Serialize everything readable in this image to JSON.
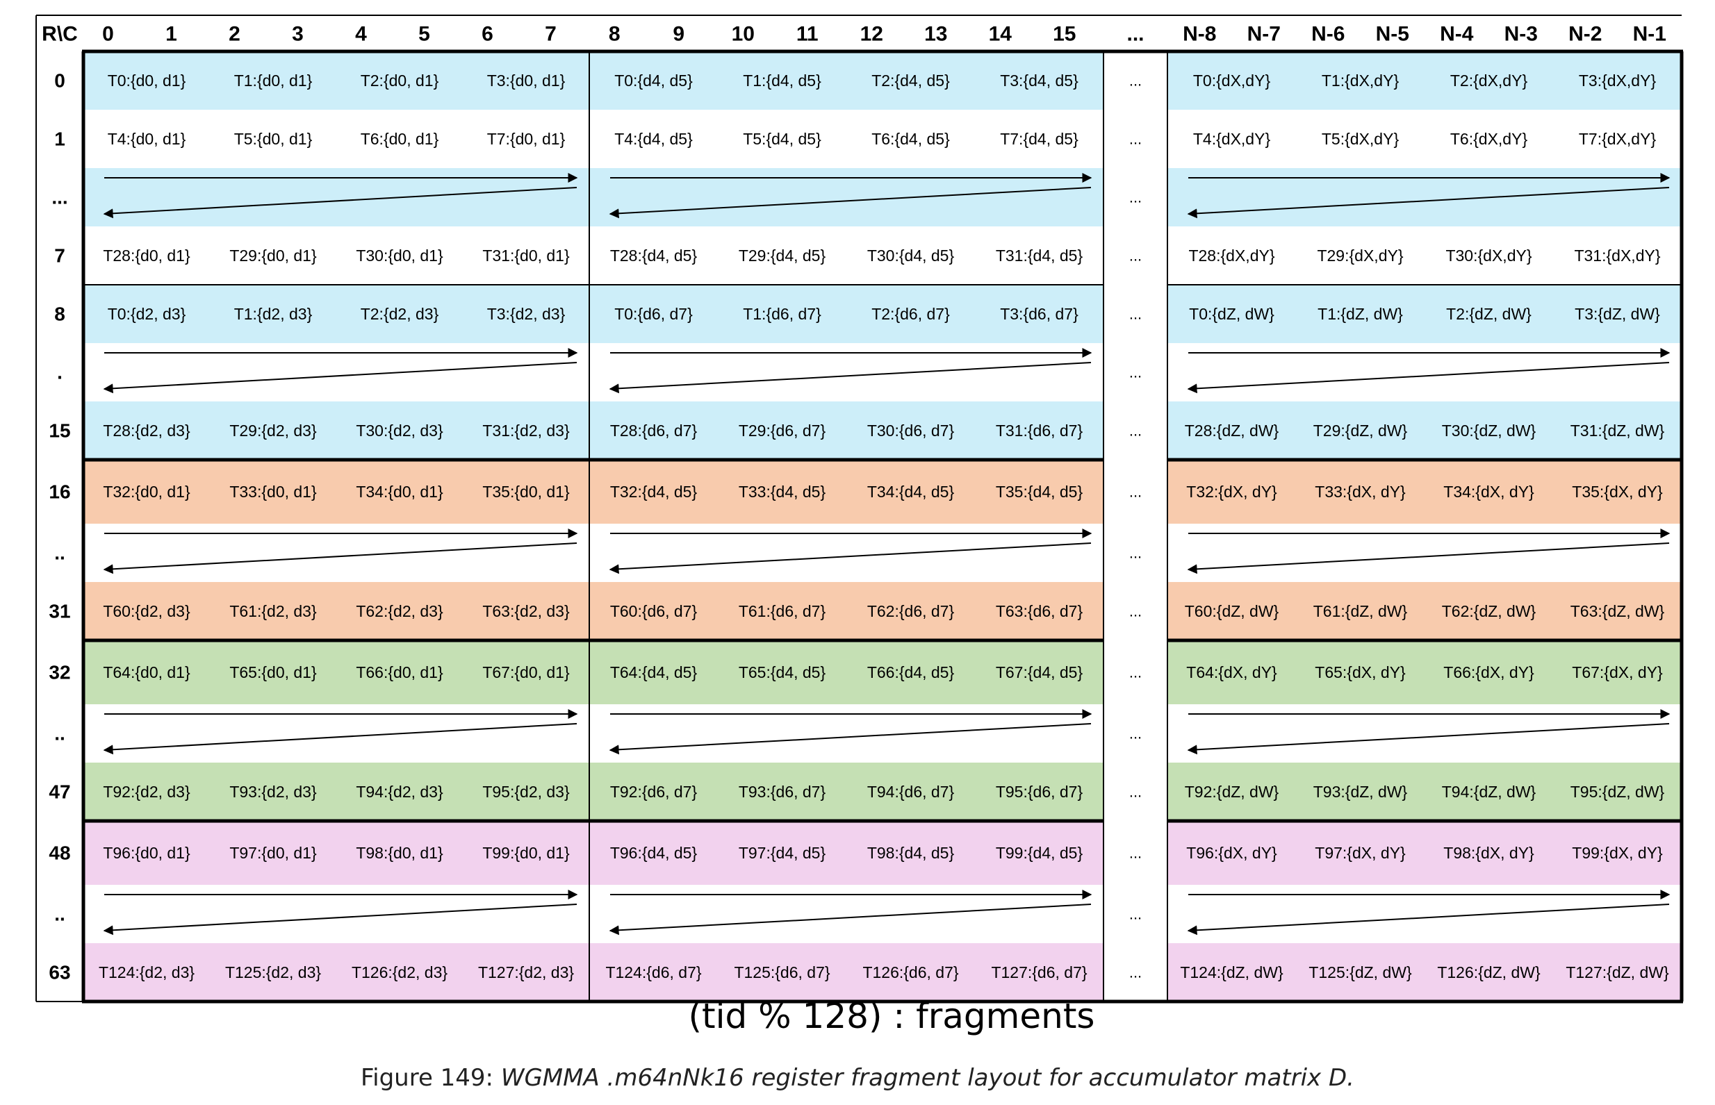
{
  "corner_label": "R\\C",
  "col_headers": [
    "0",
    "1",
    "2",
    "3",
    "4",
    "5",
    "6",
    "7",
    "8",
    "9",
    "10",
    "11",
    "12",
    "13",
    "14",
    "15",
    "...",
    "N-8",
    "N-7",
    "N-6",
    "N-5",
    "N-4",
    "N-3",
    "N-2",
    "N-1"
  ],
  "ellipsis": "...",
  "legend": "(tid % 128) : fragments",
  "caption": {
    "prefix": "Figure 149: ",
    "italic": "WGMMA .m64nNk16 register fragment layout for accumulator matrix D."
  },
  "colors": {
    "blue": "#cdeef9",
    "orange": "#f8cbad",
    "green": "#c5e0b4",
    "pink": "#f2d2ee",
    "white": "#ffffff"
  },
  "rows": [
    {
      "label": "0",
      "type": "cells",
      "color": "blue",
      "cells": [
        "T0:{d0, d1}",
        "T1:{d0, d1}",
        "T2:{d0, d1}",
        "T3:{d0, d1}",
        "T0:{d4, d5}",
        "T1:{d4, d5}",
        "T2:{d4, d5}",
        "T3:{d4, d5}",
        "T0:{dX,dY}",
        "T1:{dX,dY}",
        "T2:{dX,dY}",
        "T3:{dX,dY}"
      ]
    },
    {
      "label": "1",
      "type": "cells",
      "color": "white",
      "cells": [
        "T4:{d0, d1}",
        "T5:{d0, d1}",
        "T6:{d0, d1}",
        "T7:{d0, d1}",
        "T4:{d4, d5}",
        "T5:{d4, d5}",
        "T6:{d4, d5}",
        "T7:{d4, d5}",
        "T4:{dX,dY}",
        "T5:{dX,dY}",
        "T6:{dX,dY}",
        "T7:{dX,dY}"
      ]
    },
    {
      "label": "...",
      "type": "arrows",
      "color": "blue"
    },
    {
      "label": "7",
      "type": "cells",
      "color": "white",
      "cells": [
        "T28:{d0, d1}",
        "T29:{d0, d1}",
        "T30:{d0, d1}",
        "T31:{d0, d1}",
        "T28:{d4, d5}",
        "T29:{d4, d5}",
        "T30:{d4, d5}",
        "T31:{d4, d5}",
        "T28:{dX,dY}",
        "T29:{dX,dY}",
        "T30:{dX,dY}",
        "T31:{dX,dY}"
      ]
    },
    {
      "label": "8",
      "type": "cells",
      "color": "blue",
      "cells": [
        "T0:{d2, d3}",
        "T1:{d2, d3}",
        "T2:{d2, d3}",
        "T3:{d2, d3}",
        "T0:{d6, d7}",
        "T1:{d6, d7}",
        "T2:{d6, d7}",
        "T3:{d6, d7}",
        "T0:{dZ, dW}",
        "T1:{dZ, dW}",
        "T2:{dZ, dW}",
        "T3:{dZ, dW}"
      ]
    },
    {
      "label": ".",
      "type": "arrows",
      "color": "white"
    },
    {
      "label": "15",
      "type": "cells",
      "color": "blue",
      "cells": [
        "T28:{d2, d3}",
        "T29:{d2, d3}",
        "T30:{d2, d3}",
        "T31:{d2, d3}",
        "T28:{d6, d7}",
        "T29:{d6, d7}",
        "T30:{d6, d7}",
        "T31:{d6, d7}",
        "T28:{dZ, dW}",
        "T29:{dZ, dW}",
        "T30:{dZ, dW}",
        "T31:{dZ, dW}"
      ]
    },
    {
      "label": "16",
      "type": "cells",
      "color": "orange",
      "cells": [
        "T32:{d0, d1}",
        "T33:{d0, d1}",
        "T34:{d0, d1}",
        "T35:{d0, d1}",
        "T32:{d4, d5}",
        "T33:{d4, d5}",
        "T34:{d4, d5}",
        "T35:{d4, d5}",
        "T32:{dX, dY}",
        "T33:{dX, dY}",
        "T34:{dX, dY}",
        "T35:{dX, dY}"
      ]
    },
    {
      "label": "..",
      "type": "arrows",
      "color": "white"
    },
    {
      "label": "31",
      "type": "cells",
      "color": "orange",
      "cells": [
        "T60:{d2, d3}",
        "T61:{d2, d3}",
        "T62:{d2, d3}",
        "T63:{d2, d3}",
        "T60:{d6, d7}",
        "T61:{d6, d7}",
        "T62:{d6, d7}",
        "T63:{d6, d7}",
        "T60:{dZ, dW}",
        "T61:{dZ, dW}",
        "T62:{dZ, dW}",
        "T63:{dZ, dW}"
      ]
    },
    {
      "label": "32",
      "type": "cells",
      "color": "green",
      "cells": [
        "T64:{d0, d1}",
        "T65:{d0, d1}",
        "T66:{d0, d1}",
        "T67:{d0, d1}",
        "T64:{d4, d5}",
        "T65:{d4, d5}",
        "T66:{d4, d5}",
        "T67:{d4, d5}",
        "T64:{dX, dY}",
        "T65:{dX, dY}",
        "T66:{dX, dY}",
        "T67:{dX, dY}"
      ]
    },
    {
      "label": "..",
      "type": "arrows",
      "color": "white"
    },
    {
      "label": "47",
      "type": "cells",
      "color": "green",
      "cells": [
        "T92:{d2, d3}",
        "T93:{d2, d3}",
        "T94:{d2, d3}",
        "T95:{d2, d3}",
        "T92:{d6, d7}",
        "T93:{d6, d7}",
        "T94:{d6, d7}",
        "T95:{d6, d7}",
        "T92:{dZ, dW}",
        "T93:{dZ, dW}",
        "T94:{dZ, dW}",
        "T95:{dZ, dW}"
      ]
    },
    {
      "label": "48",
      "type": "cells",
      "color": "pink",
      "cells": [
        "T96:{d0, d1}",
        "T97:{d0, d1}",
        "T98:{d0, d1}",
        "T99:{d0, d1}",
        "T96:{d4, d5}",
        "T97:{d4, d5}",
        "T98:{d4, d5}",
        "T99:{d4, d5}",
        "T96:{dX, dY}",
        "T97:{dX, dY}",
        "T98:{dX, dY}",
        "T99:{dX, dY}"
      ]
    },
    {
      "label": "..",
      "type": "arrows",
      "color": "white"
    },
    {
      "label": "63",
      "type": "cells",
      "color": "pink",
      "cells": [
        "T124:{d2, d3}",
        "T125:{d2, d3}",
        "T126:{d2, d3}",
        "T127:{d2, d3}",
        "T124:{d6, d7}",
        "T125:{d6, d7}",
        "T126:{d6, d7}",
        "T127:{d6, d7}",
        "T124:{dZ, dW}",
        "T125:{dZ, dW}",
        "T126:{dZ, dW}",
        "T127:{dZ, dW}"
      ]
    }
  ]
}
